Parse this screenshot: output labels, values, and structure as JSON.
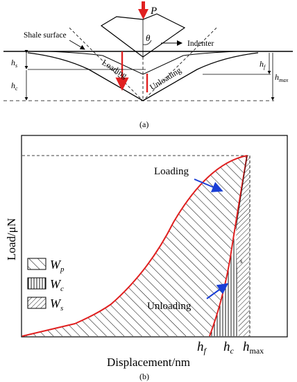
{
  "panel_a": {
    "label": "(a)",
    "load_symbol": "P",
    "angle_symbol": "θ",
    "shale_surface": "Shale surface",
    "indenter": "Indenter",
    "loading": "Loading",
    "unloading": "Unloading",
    "hs_main": "h",
    "hs_sub": "s",
    "hc_main": "h",
    "hc_sub": "c",
    "hf_main": "h",
    "hf_sub": "f",
    "hmax_main": "h",
    "hmax_sub": "max"
  },
  "panel_b": {
    "label": "(b)",
    "xlabel": "Displacement/nm",
    "ylabel": "Load/μN",
    "loading": "Loading",
    "unloading": "Unloading",
    "legend": [
      {
        "main": "W",
        "sub": "p",
        "pattern": "back-diagonal"
      },
      {
        "main": "W",
        "sub": "c",
        "pattern": "vertical"
      },
      {
        "main": "W",
        "sub": "s",
        "pattern": "forward-diagonal"
      }
    ],
    "ticks": [
      {
        "main": "h",
        "sub": "f"
      },
      {
        "main": "h",
        "sub": "c"
      },
      {
        "main": "h",
        "sub": "max"
      }
    ],
    "curve_color": "#e02020",
    "arrow_color": "#1a3fd6"
  }
}
